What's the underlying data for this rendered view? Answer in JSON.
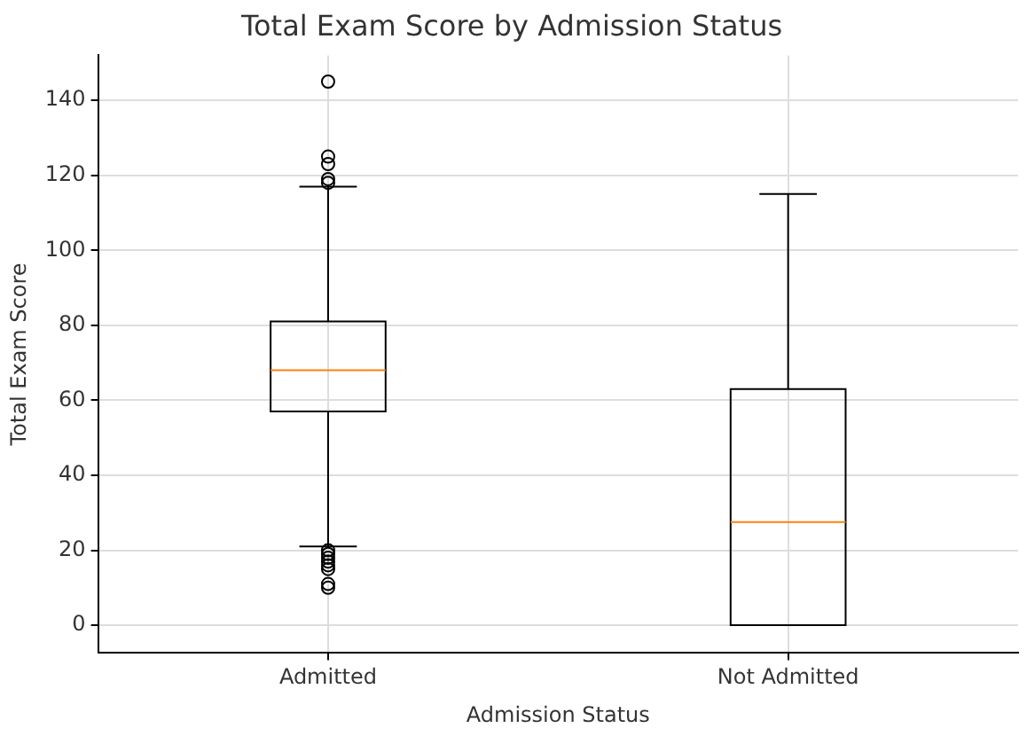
{
  "chart_data": {
    "type": "box",
    "title": "Total Exam Score by Admission Status",
    "xlabel": "Admission Status",
    "ylabel": "Total Exam Score",
    "categories": [
      "Admitted",
      "Not Admitted"
    ],
    "boxes": [
      {
        "low": 21,
        "q1": 57,
        "median": 68,
        "q3": 81,
        "high": 117,
        "outliers": [
          145,
          125,
          123,
          119,
          118,
          20,
          19,
          18,
          17,
          16,
          15,
          11,
          10
        ]
      },
      {
        "low": 0,
        "q1": 0,
        "median": 27.5,
        "q3": 63,
        "high": 115
      }
    ],
    "color": "#000000",
    "ylim": [
      -7.4,
      152
    ],
    "yticks": [
      0,
      20,
      40,
      60,
      80,
      100,
      120,
      140
    ],
    "grid": true,
    "legend": false
  }
}
